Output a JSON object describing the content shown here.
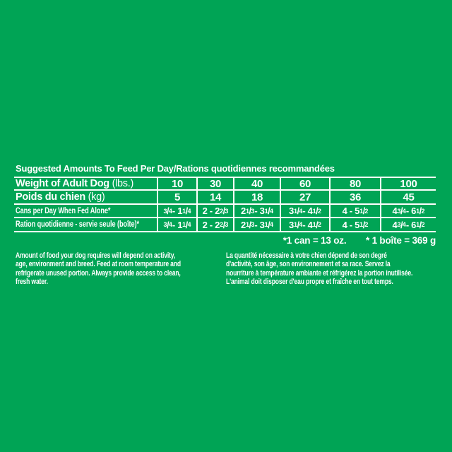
{
  "colors": {
    "background": "#00a455",
    "text": "#ffffff",
    "table_lines": "#ffffff"
  },
  "title": "Suggested Amounts To Feed Per Day/Rations quotidiennes recommandées",
  "table": {
    "rows": [
      {
        "label_bold": "Weight of Adult Dog",
        "label_regular": "(lbs.)",
        "values": [
          "10",
          "30",
          "40",
          "60",
          "80",
          "100"
        ]
      },
      {
        "label_bold": "Poids du chien",
        "label_regular": "(kg)",
        "values": [
          "5",
          "14",
          "18",
          "27",
          "36",
          "45"
        ]
      },
      {
        "label": "Cans per Day When Fed Alone*",
        "values": [
          "3/4 - 1 1/4",
          "2 - 2 2/3",
          "2 1/3 - 3 1/4",
          "3 1/4 - 4 1/2",
          "4 - 5 1/2",
          "4 3/4 - 6 1/2"
        ]
      },
      {
        "label": "Ration quotidienne - servie seule (boîte)*",
        "values": [
          "3/4 - 1 1/4",
          "2 - 2 2/3",
          "2 1/3 - 3 1/4",
          "3 1/4 - 4 1/2",
          "4 - 5 1/2",
          "4 3/4 - 6 1/2"
        ]
      }
    ]
  },
  "notes": {
    "can": "*1 can = 13 oz.",
    "boite": "* 1 boîte = 369 g"
  },
  "paragraphs": {
    "english": "Amount of food your dog requires will depend on activity,\nage, environment and breed. Feed at room temperature and\nrefrigerate unused portion. Always provide access to clean,\nfresh water.",
    "french": "La quantité nécessaire à votre chien dépend de son degré\nd'activité, son âge, son environnement et sa race. Servez la\nnourriture à température ambiante et réfrigérez la portion inutilisée.\nL'animal doit disposer d'eau propre et fraîche en tout temps."
  }
}
